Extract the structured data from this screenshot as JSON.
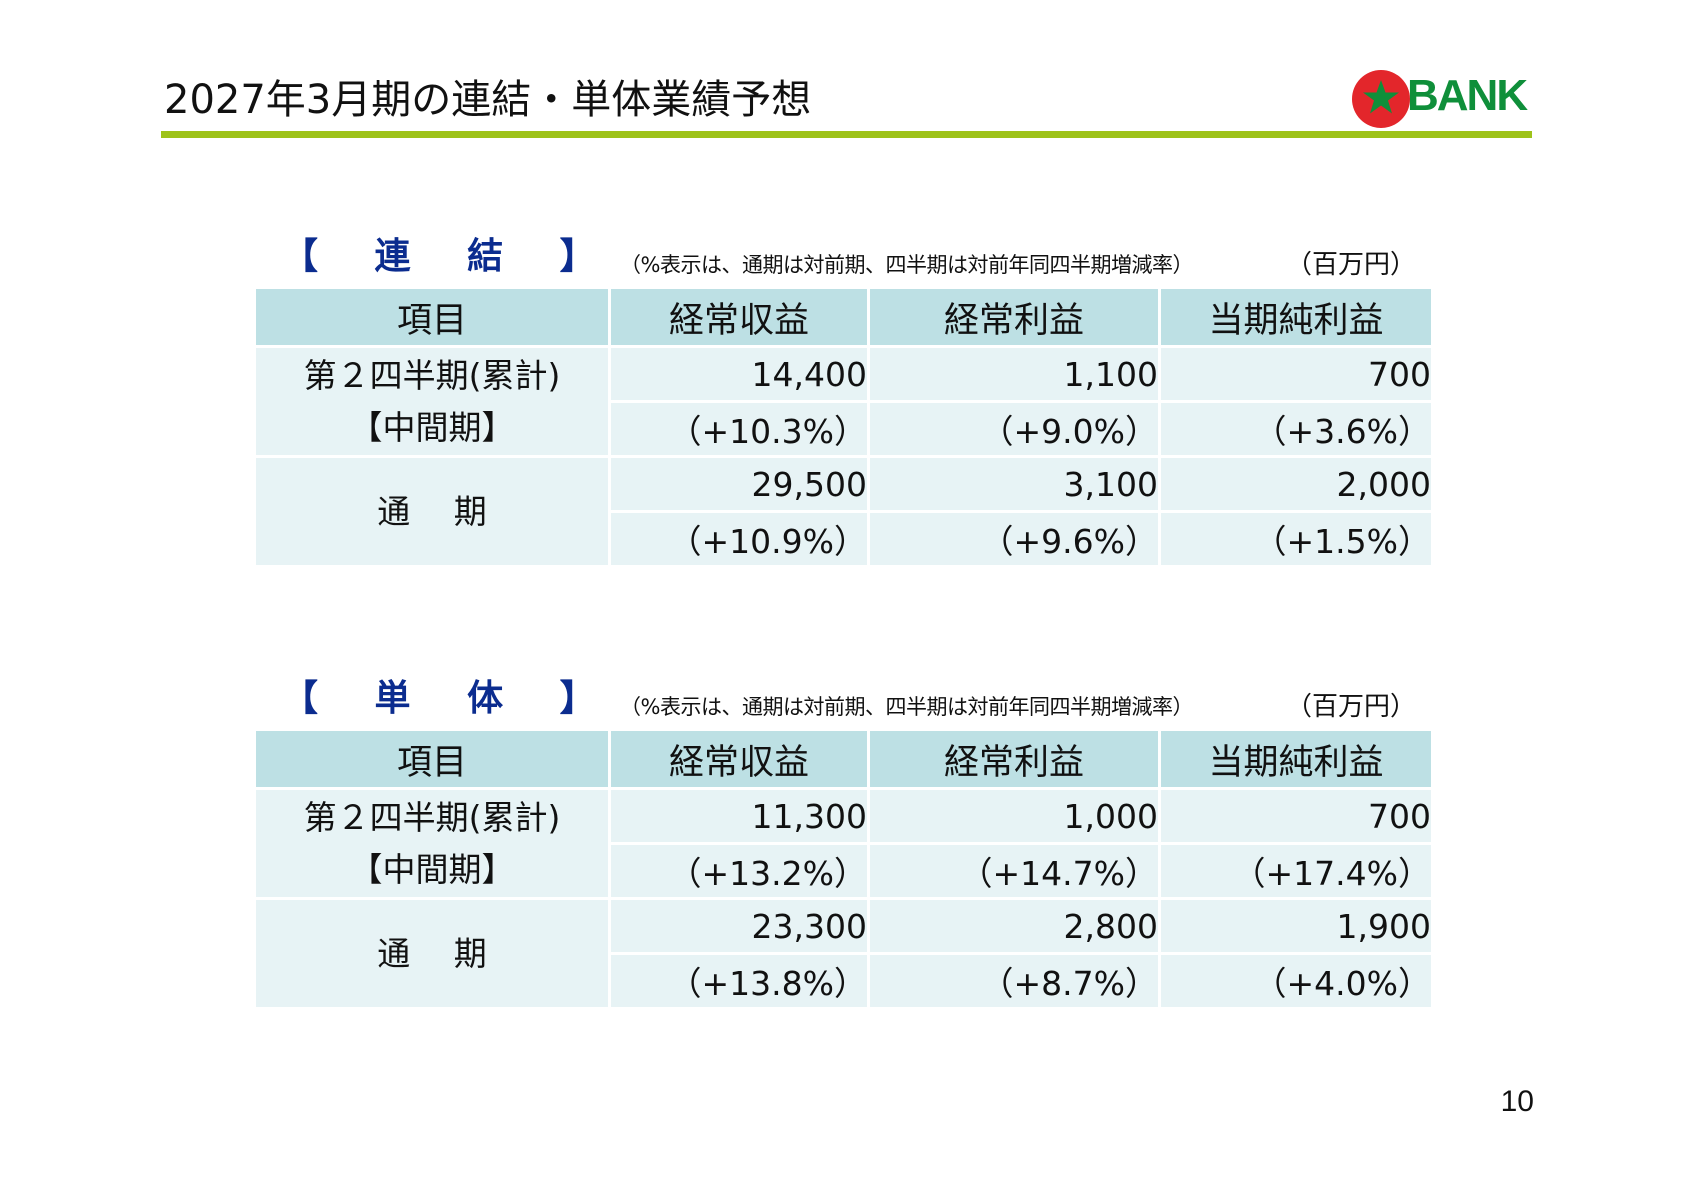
{
  "page": {
    "title": "2027年3月期の連結・単体業績予想",
    "number": "10"
  },
  "logo": {
    "text": "BANK",
    "text_color": "#0f8f3a",
    "mark_color": "#e3262b",
    "star_color": "#0f8f3a",
    "mark_icon": "star-in-circle-icon"
  },
  "colors": {
    "title_rule": "#9ec31a",
    "header_fill": "#bde0e4",
    "body_fill": "#e7f3f5",
    "section_label": "#0b2c8f"
  },
  "consolidated": {
    "label": "【 連 結 】",
    "note": "（%表示は、通期は対前期、四半期は対前年同四半期増減率）",
    "unit": "（百万円）",
    "headers": [
      "項目",
      "経常収益",
      "経常利益",
      "当期純利益"
    ],
    "rows": [
      {
        "label_line1": "第２四半期(累計)",
        "label_line2": "【中間期】",
        "values": [
          "14,400",
          "1,100",
          "700"
        ],
        "changes": [
          "（+10.3%）",
          "（+9.0%）",
          "（+3.6%）"
        ]
      },
      {
        "label_line1": "通　 期",
        "label_line2": "",
        "values": [
          "29,500",
          "3,100",
          "2,000"
        ],
        "changes": [
          "（+10.9%）",
          "（+9.6%）",
          "（+1.5%）"
        ]
      }
    ]
  },
  "non_consolidated": {
    "label": "【 単 体 】",
    "note": "（%表示は、通期は対前期、四半期は対前年同四半期増減率）",
    "unit": "（百万円）",
    "headers": [
      "項目",
      "経常収益",
      "経常利益",
      "当期純利益"
    ],
    "rows": [
      {
        "label_line1": "第２四半期(累計)",
        "label_line2": "【中間期】",
        "values": [
          "11,300",
          "1,000",
          "700"
        ],
        "changes": [
          "（+13.2%）",
          "（+14.7%）",
          "（+17.4%）"
        ]
      },
      {
        "label_line1": "通　 期",
        "label_line2": "",
        "values": [
          "23,300",
          "2,800",
          "1,900"
        ],
        "changes": [
          "（+13.8%）",
          "（+8.7%）",
          "（+4.0%）"
        ]
      }
    ]
  }
}
